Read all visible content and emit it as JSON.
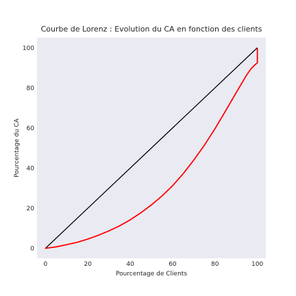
{
  "chart_data": {
    "type": "scatter",
    "title": "Courbe de Lorenz : Evolution du CA en fonction des clients",
    "xlabel": "Pourcentage de Clients",
    "ylabel": "Pourcentage du CA",
    "xlim": [
      -4,
      104
    ],
    "ylim": [
      -5,
      105
    ],
    "xticks": [
      "0",
      "20",
      "40",
      "60",
      "80",
      "100"
    ],
    "yticks": [
      "0",
      "20",
      "40",
      "60",
      "80",
      "100"
    ],
    "grid": false,
    "legend": "none",
    "colors": {
      "plot_background": "#eaeaf2",
      "curve": "#ff0000",
      "equality_line": "#000000"
    },
    "series": [
      {
        "kind": "line",
        "x": [
          0,
          100
        ],
        "y": [
          0,
          100
        ]
      },
      {
        "kind": "scatter",
        "x": [
          0,
          5,
          10,
          15,
          20,
          25,
          30,
          35,
          40,
          45,
          50,
          55,
          60,
          65,
          70,
          75,
          80,
          85,
          90,
          95,
          97,
          99,
          100,
          100,
          100,
          100
        ],
        "y": [
          0,
          0.7,
          1.8,
          3.0,
          4.6,
          6.5,
          8.7,
          11.2,
          14.2,
          17.7,
          21.6,
          26.1,
          31.2,
          37.2,
          44.0,
          51.4,
          59.6,
          68.5,
          77.6,
          86.5,
          89.5,
          91.6,
          92.5,
          94.0,
          96.5,
          99.5
        ]
      }
    ]
  }
}
